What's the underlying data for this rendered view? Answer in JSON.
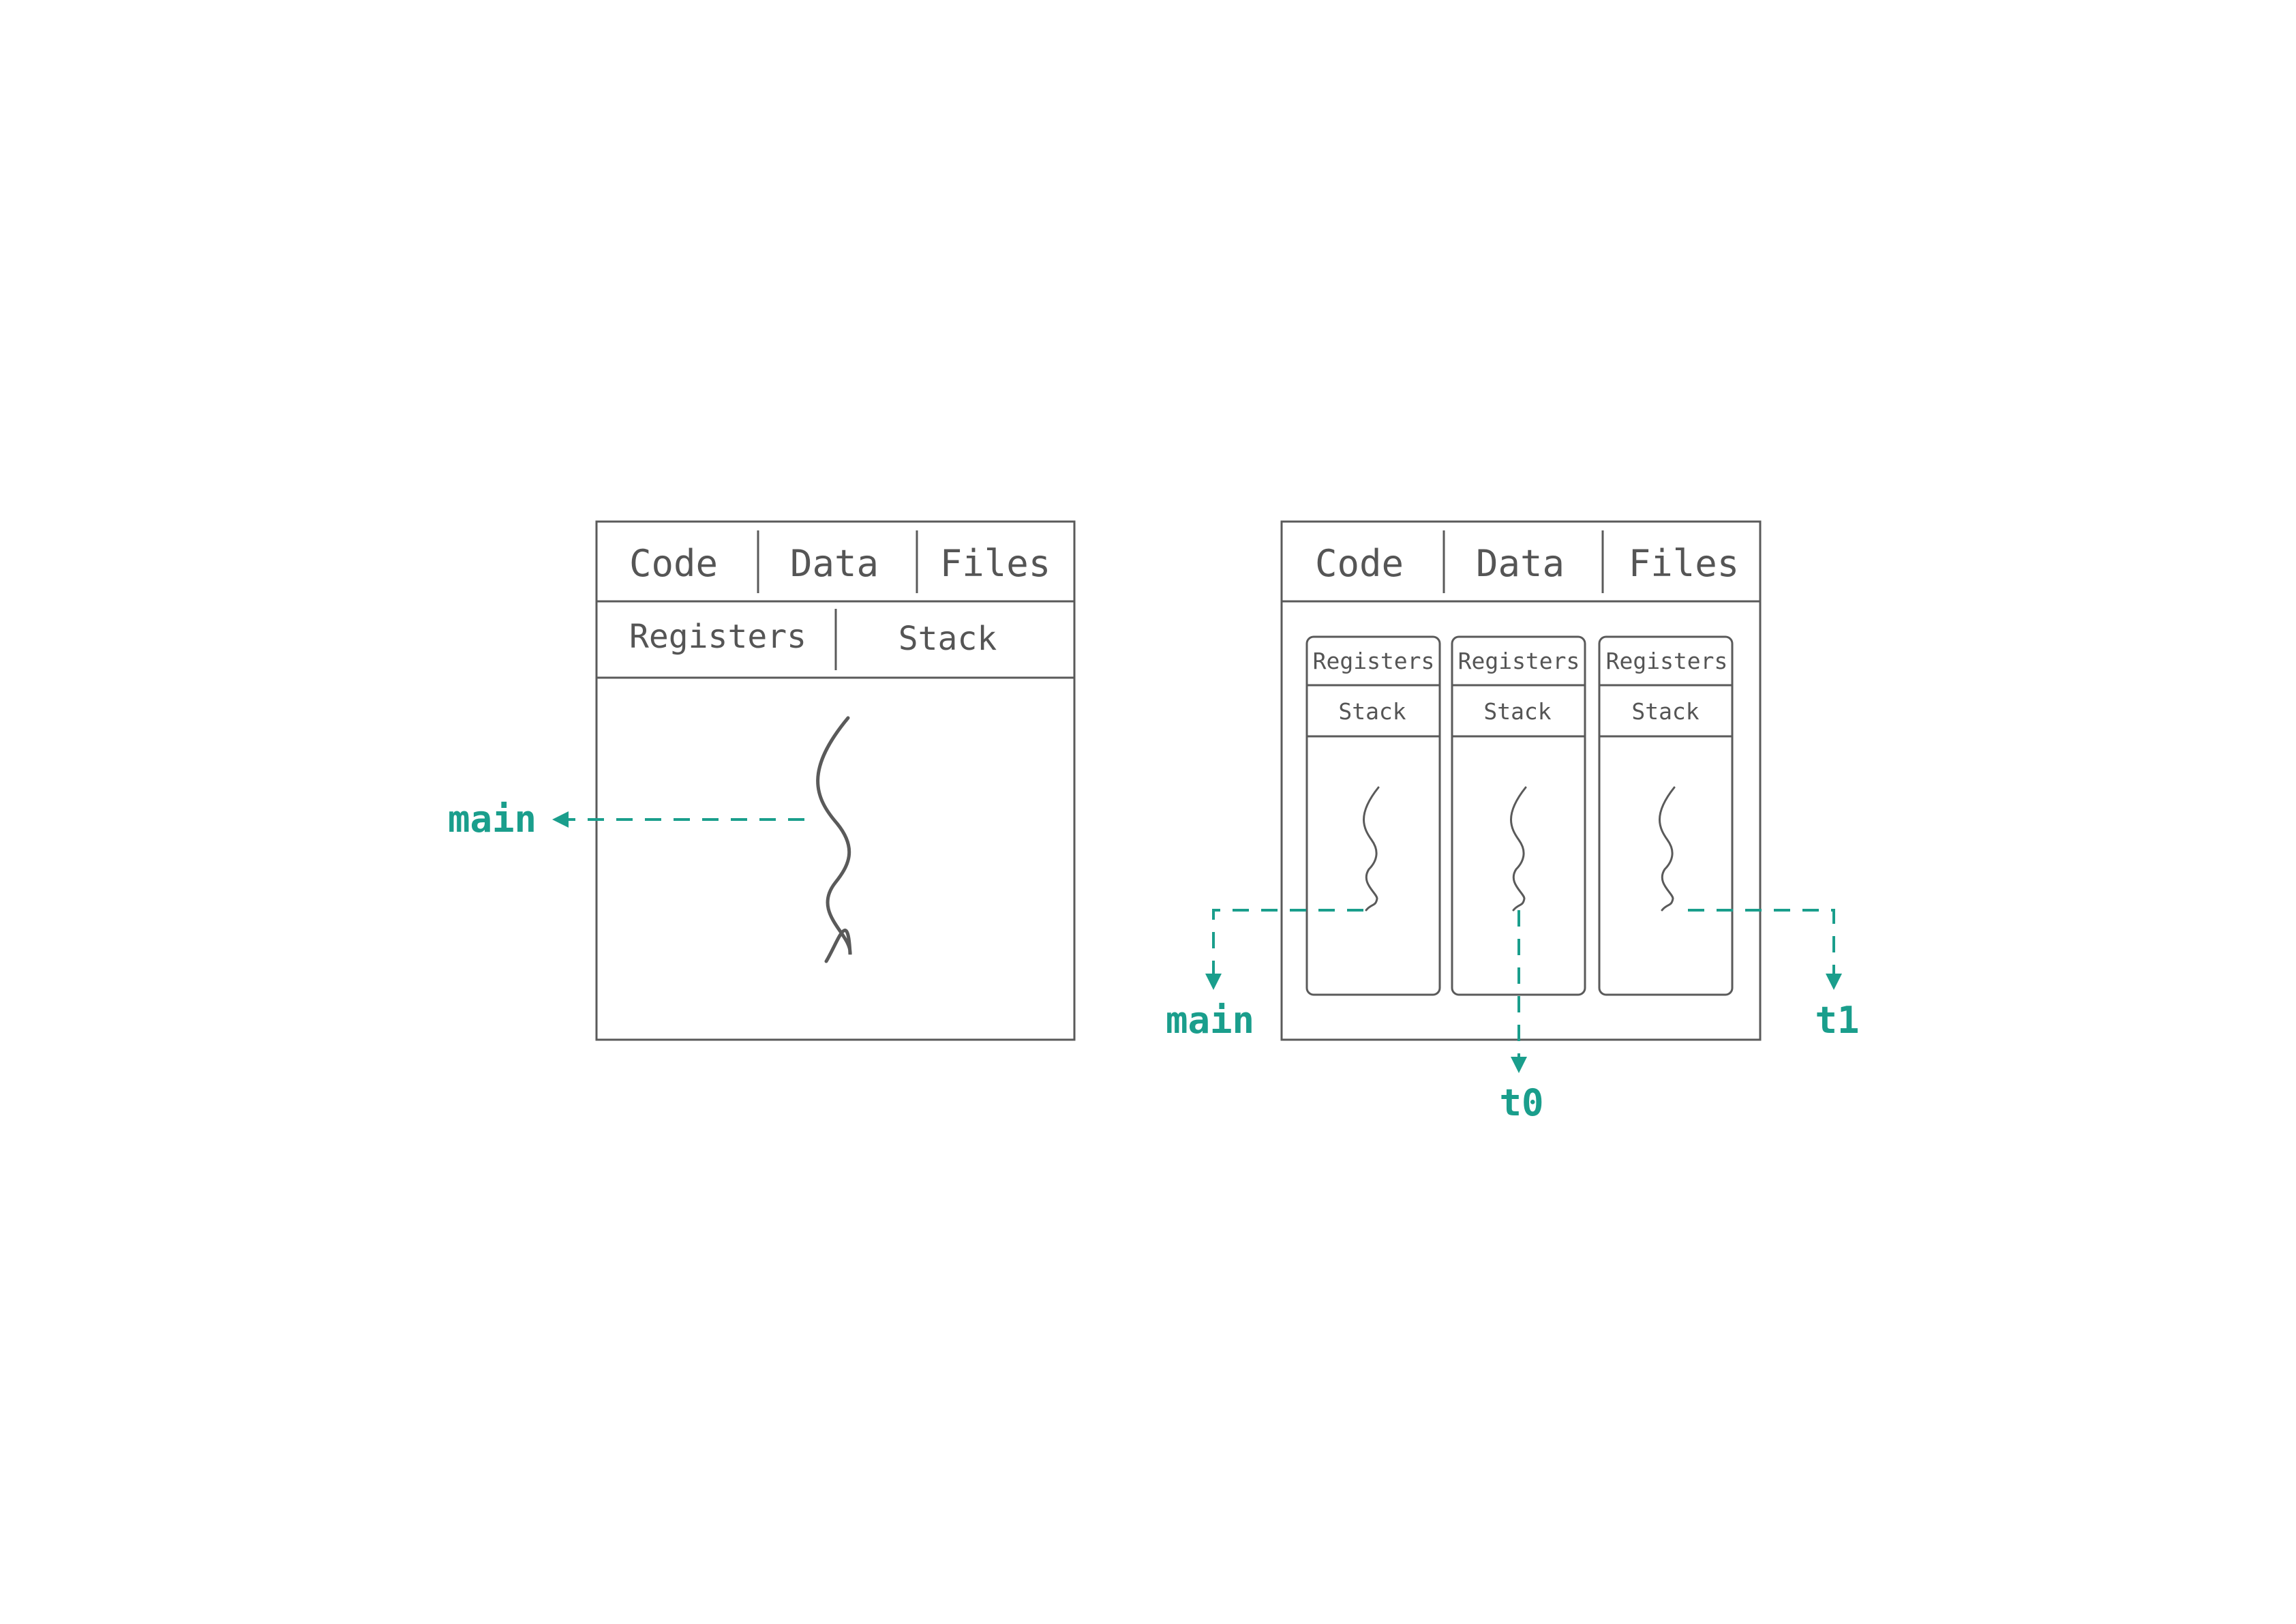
{
  "colors": {
    "stroke": "#5a5a5a",
    "text": "#555555",
    "accent": "#1a9e8c",
    "background": "#ffffff"
  },
  "single": {
    "segments": [
      "Code",
      "Data",
      "Files"
    ],
    "thread_state": [
      "Registers",
      "Stack"
    ],
    "thread_label": "main"
  },
  "multi": {
    "segments": [
      "Code",
      "Data",
      "Files"
    ],
    "threads": [
      {
        "registers": "Registers",
        "stack": "Stack",
        "label": "main"
      },
      {
        "registers": "Registers",
        "stack": "Stack",
        "label": "t0"
      },
      {
        "registers": "Registers",
        "stack": "Stack",
        "label": "t1"
      }
    ]
  }
}
